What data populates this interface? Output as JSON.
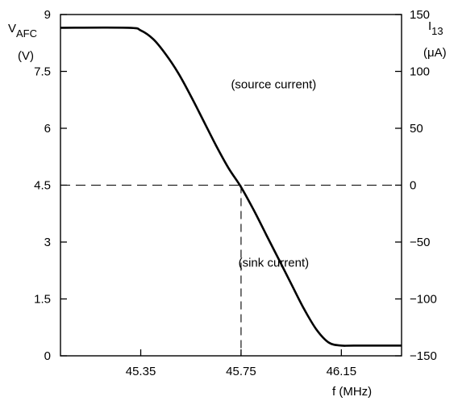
{
  "chart_data": {
    "type": "line",
    "title": "",
    "x": {
      "label": "f (MHz)",
      "ticks": [
        45.35,
        45.75,
        46.15
      ],
      "tick_labels": [
        "45.35",
        "45.75",
        "46.15"
      ],
      "range": [
        45.03,
        46.39
      ]
    },
    "y_left": {
      "label_main": "V",
      "label_sub": "AFC",
      "unit": "(V)",
      "ticks": [
        0,
        1.5,
        3,
        4.5,
        6,
        7.5,
        9
      ],
      "tick_labels": [
        "0",
        "1.5",
        "3",
        "4.5",
        "6",
        "7.5",
        "9"
      ],
      "range": [
        0,
        9
      ]
    },
    "y_right": {
      "label_main": "I",
      "label_sub": "13",
      "unit": "(μA)",
      "ticks": [
        -150,
        -100,
        -50,
        0,
        50,
        100,
        150
      ],
      "tick_labels": [
        "−150",
        "−100",
        "−50",
        "0",
        "50",
        "100",
        "150"
      ],
      "range": [
        -150,
        150
      ]
    },
    "series": [
      {
        "x": [
          45.03,
          45.3,
          45.35,
          45.4,
          45.45,
          45.5,
          45.55,
          45.6,
          45.65,
          45.7,
          45.75,
          45.8,
          45.85,
          45.9,
          45.95,
          46.0,
          46.05,
          46.1,
          46.15,
          46.2,
          46.39
        ],
        "y": [
          8.65,
          8.65,
          8.58,
          8.35,
          7.95,
          7.45,
          6.85,
          6.2,
          5.55,
          4.95,
          4.45,
          3.85,
          3.2,
          2.55,
          1.9,
          1.25,
          0.7,
          0.35,
          0.27,
          0.27,
          0.27
        ]
      }
    ],
    "reference": {
      "x": 45.75,
      "y": 4.5
    },
    "annotations": [
      {
        "text": "(source current)",
        "x": 45.88,
        "y": 7.05
      },
      {
        "text": "(sink current)",
        "x": 45.88,
        "y": 2.35
      }
    ],
    "grid": false
  }
}
